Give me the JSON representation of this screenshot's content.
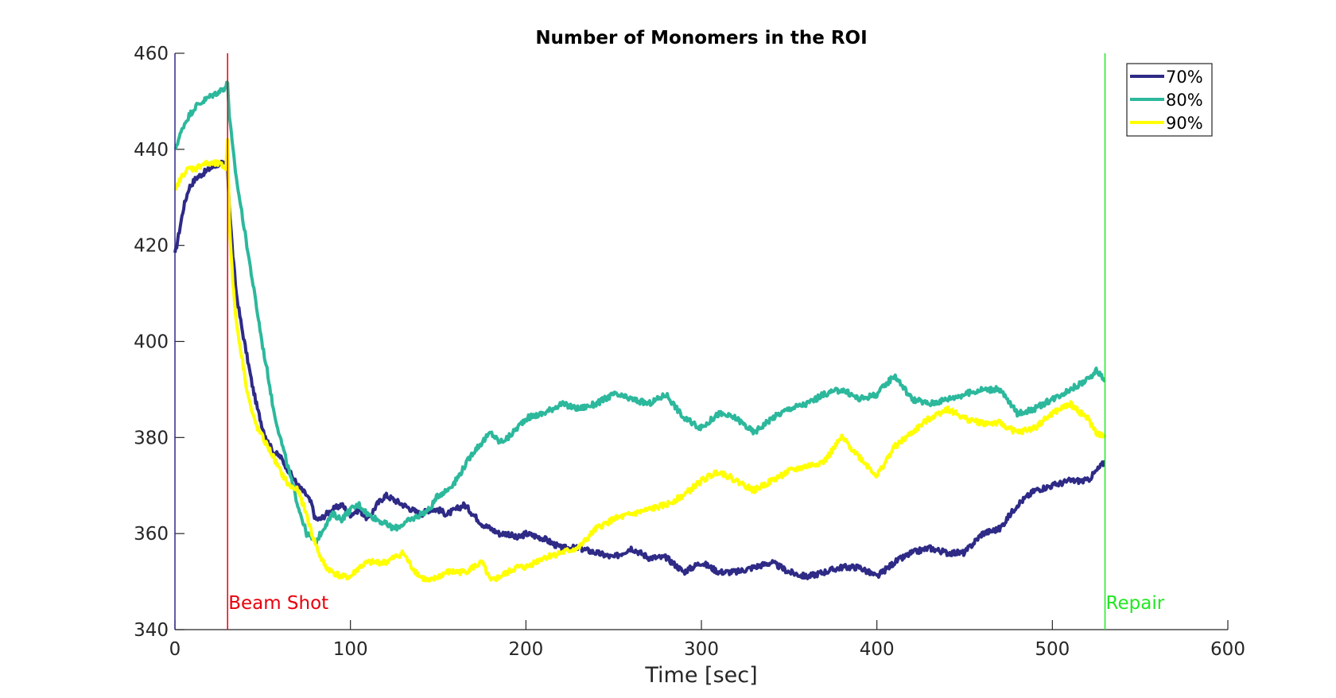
{
  "chart_data": {
    "type": "line",
    "title": "Number of Monomers in the ROI",
    "xlabel": "Time [sec]",
    "ylabel": "",
    "xlim": [
      0,
      600
    ],
    "ylim": [
      340,
      460
    ],
    "xticks": [
      "0",
      "100",
      "200",
      "300",
      "400",
      "500",
      "600"
    ],
    "yticks": [
      "340",
      "360",
      "380",
      "400",
      "420",
      "440",
      "460"
    ],
    "grid": false,
    "legend_position": "top-right",
    "annotations": [
      {
        "label": "Beam Shot",
        "x": 30,
        "color": "#e8000b"
      },
      {
        "label": "Repair",
        "x": 530,
        "color": "#22e822"
      }
    ],
    "series": [
      {
        "name": "70%",
        "color": "#2e2a86",
        "x": [
          0,
          2,
          5,
          8,
          12,
          16,
          20,
          25,
          29,
          30,
          31,
          33,
          35,
          38,
          41,
          44,
          47,
          50,
          53,
          56,
          60,
          65,
          70,
          75,
          78,
          80,
          83,
          86,
          90,
          95,
          100,
          105,
          110,
          115,
          120,
          125,
          130,
          135,
          140,
          145,
          150,
          155,
          160,
          165,
          170,
          175,
          180,
          185,
          190,
          195,
          200,
          210,
          220,
          230,
          240,
          250,
          260,
          270,
          280,
          290,
          300,
          310,
          320,
          330,
          340,
          350,
          360,
          370,
          380,
          390,
          400,
          410,
          420,
          430,
          440,
          450,
          460,
          470,
          480,
          490,
          500,
          510,
          520,
          525,
          530
        ],
        "y": [
          418,
          422,
          428,
          432,
          434,
          435,
          436,
          437,
          437,
          436,
          428,
          418,
          410,
          403,
          397,
          391,
          386,
          382,
          379,
          377,
          376,
          373,
          370,
          368,
          366,
          363,
          363,
          364,
          365,
          366,
          364,
          365,
          363,
          366,
          368,
          367,
          366,
          365,
          364,
          365,
          365,
          364,
          365,
          366,
          364,
          362,
          361,
          360,
          360,
          359,
          360,
          359,
          357,
          357,
          356,
          355,
          357,
          355,
          355,
          352,
          354,
          352,
          352,
          353,
          354,
          352,
          351,
          352,
          353,
          353,
          351,
          354,
          356,
          357,
          356,
          356,
          360,
          361,
          366,
          369,
          370,
          371,
          371,
          373,
          375
        ]
      },
      {
        "name": "80%",
        "color": "#2cb89c",
        "x": [
          0,
          2,
          5,
          8,
          12,
          16,
          20,
          25,
          29,
          30,
          31,
          33,
          35,
          38,
          41,
          44,
          47,
          50,
          53,
          56,
          60,
          65,
          70,
          75,
          78,
          80,
          83,
          86,
          90,
          95,
          100,
          105,
          110,
          115,
          120,
          125,
          130,
          135,
          140,
          145,
          150,
          155,
          160,
          165,
          170,
          175,
          180,
          185,
          190,
          195,
          200,
          210,
          220,
          230,
          240,
          250,
          260,
          270,
          280,
          290,
          300,
          310,
          320,
          330,
          340,
          350,
          360,
          370,
          380,
          390,
          400,
          410,
          420,
          430,
          440,
          450,
          460,
          470,
          480,
          490,
          500,
          510,
          520,
          525,
          530
        ],
        "y": [
          440,
          442,
          445,
          447,
          449,
          450,
          451,
          452,
          453,
          454,
          447,
          440,
          434,
          427,
          420,
          413,
          406,
          399,
          393,
          386,
          380,
          373,
          366,
          360,
          359,
          358,
          360,
          362,
          364,
          363,
          365,
          366,
          364,
          363,
          362,
          361,
          362,
          363,
          364,
          365,
          368,
          369,
          371,
          374,
          377,
          379,
          381,
          379,
          380,
          382,
          384,
          385,
          387,
          386,
          387,
          389,
          388,
          387,
          389,
          384,
          382,
          385,
          384,
          381,
          384,
          386,
          387,
          389,
          390,
          388,
          389,
          393,
          388,
          387,
          388,
          389,
          390,
          390,
          385,
          386,
          388,
          390,
          392,
          394,
          392
        ]
      },
      {
        "name": "90%",
        "color": "#ffff00",
        "x": [
          0,
          2,
          5,
          8,
          12,
          16,
          20,
          25,
          29,
          30,
          31,
          33,
          35,
          38,
          41,
          44,
          47,
          50,
          53,
          56,
          60,
          65,
          70,
          75,
          78,
          80,
          83,
          86,
          90,
          95,
          100,
          105,
          110,
          115,
          120,
          125,
          130,
          135,
          140,
          145,
          150,
          155,
          160,
          165,
          170,
          175,
          180,
          185,
          190,
          195,
          200,
          210,
          220,
          230,
          240,
          250,
          260,
          270,
          280,
          290,
          300,
          310,
          320,
          330,
          340,
          350,
          360,
          370,
          380,
          390,
          400,
          410,
          420,
          430,
          440,
          450,
          460,
          470,
          480,
          490,
          500,
          510,
          520,
          525,
          530
        ],
        "y": [
          431,
          433,
          435,
          436,
          436,
          437,
          437,
          437,
          436,
          442,
          425,
          412,
          404,
          397,
          390,
          385,
          382,
          380,
          378,
          376,
          373,
          370,
          369,
          364,
          360,
          358,
          355,
          353,
          352,
          351,
          351,
          353,
          354,
          354,
          354,
          355,
          356,
          353,
          351,
          350,
          351,
          352,
          352,
          352,
          353,
          354,
          350,
          351,
          352,
          353,
          353,
          355,
          356,
          357,
          361,
          363,
          364,
          365,
          366,
          368,
          371,
          373,
          371,
          369,
          371,
          373,
          374,
          375,
          380,
          376,
          372,
          378,
          381,
          384,
          386,
          384,
          383,
          383,
          381,
          382,
          385,
          387,
          384,
          381,
          380
        ]
      }
    ]
  }
}
